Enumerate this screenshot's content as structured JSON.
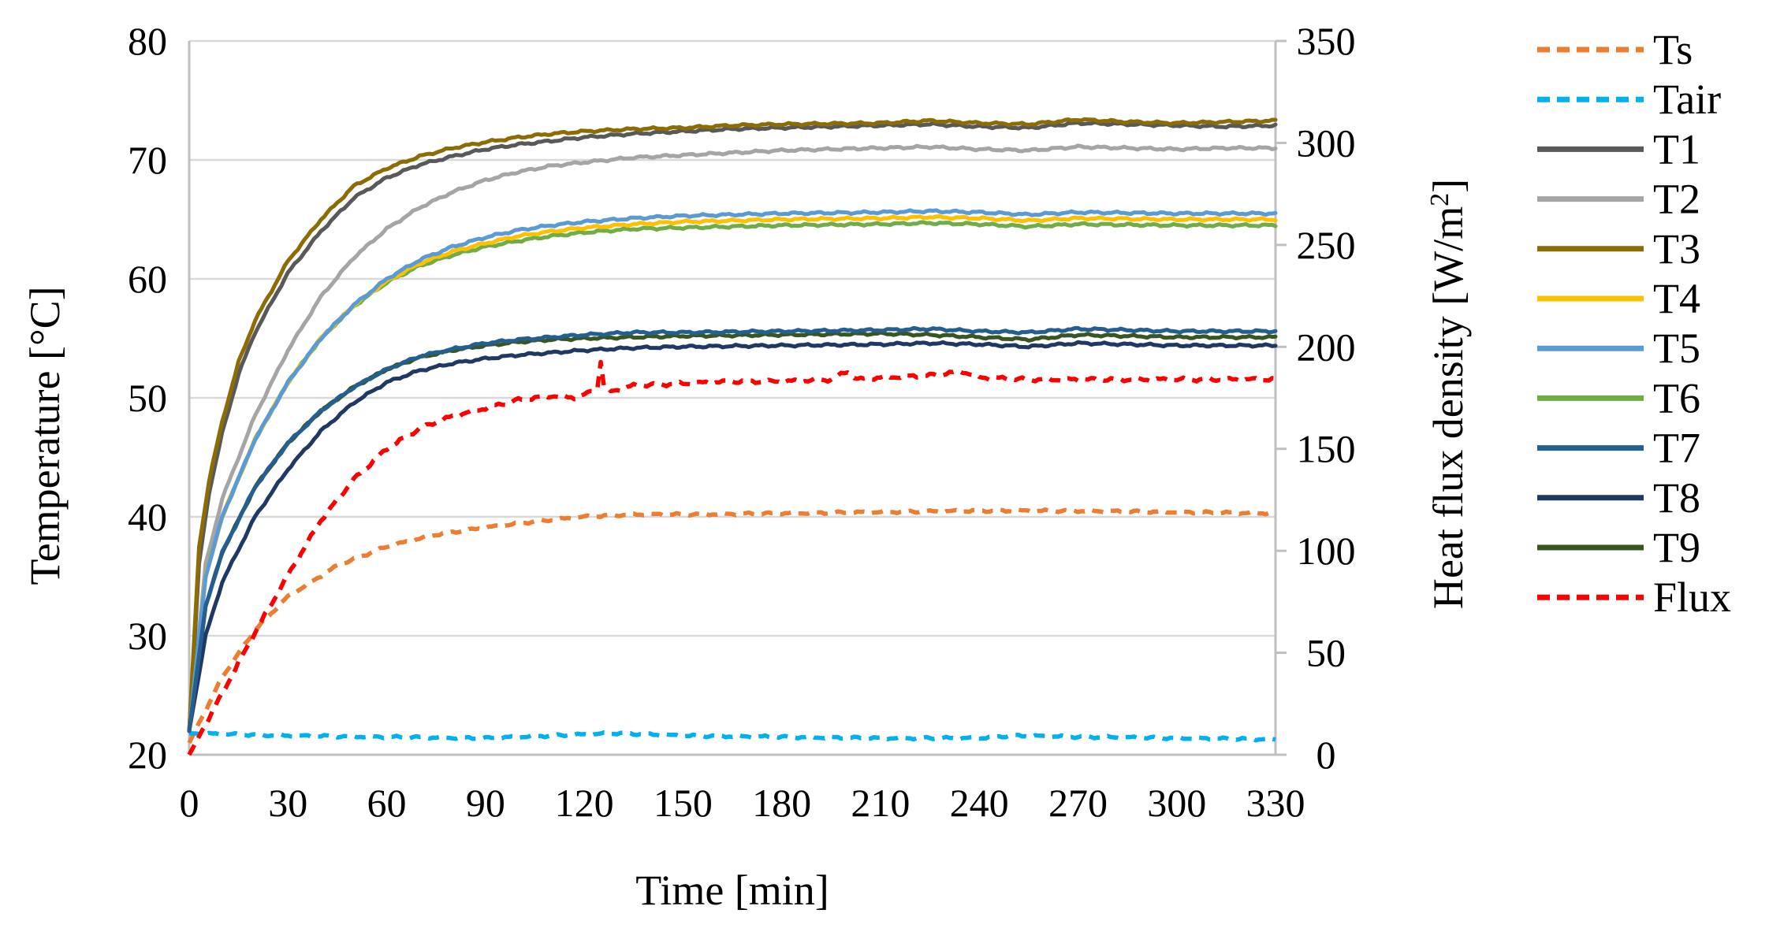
{
  "chart_data": {
    "type": "line",
    "title": "",
    "xlabel": "Time [min]",
    "ylabel": "Temperature [°C]",
    "y2label_main": "Heat flux density [W/m",
    "y2label_sup": "2",
    "y2label_end": "]",
    "xlim": [
      0,
      330
    ],
    "ylim": [
      20,
      80
    ],
    "y2lim": [
      0,
      350
    ],
    "xticks": [
      "0",
      "30",
      "60",
      "90",
      "120",
      "150",
      "180",
      "210",
      "240",
      "270",
      "300",
      "330"
    ],
    "yticks": [
      "20",
      "30",
      "40",
      "50",
      "60",
      "70",
      "80"
    ],
    "y2ticks": [
      "0",
      "50",
      "100",
      "150",
      "200",
      "250",
      "300",
      "350"
    ],
    "grid": true,
    "legend_position": "right",
    "series": [
      {
        "name": "Ts",
        "axis": "left",
        "style": "dashed",
        "color": "#ED7D31",
        "points": [
          [
            0,
            21
          ],
          [
            10,
            26.5
          ],
          [
            20,
            30.5
          ],
          [
            30,
            33.3
          ],
          [
            45,
            35.9
          ],
          [
            60,
            37.5
          ],
          [
            75,
            38.5
          ],
          [
            90,
            39.1
          ],
          [
            105,
            39.6
          ],
          [
            120,
            40.0
          ],
          [
            135,
            40.2
          ],
          [
            150,
            40.2
          ],
          [
            180,
            40.3
          ],
          [
            210,
            40.4
          ],
          [
            240,
            40.5
          ],
          [
            270,
            40.5
          ],
          [
            300,
            40.4
          ],
          [
            330,
            40.3
          ]
        ]
      },
      {
        "name": "Tair",
        "axis": "left",
        "style": "dashed",
        "color": "#00B0F0",
        "points": [
          [
            0,
            21.8
          ],
          [
            30,
            21.6
          ],
          [
            60,
            21.5
          ],
          [
            90,
            21.4
          ],
          [
            110,
            21.6
          ],
          [
            130,
            21.8
          ],
          [
            150,
            21.6
          ],
          [
            180,
            21.5
          ],
          [
            210,
            21.4
          ],
          [
            240,
            21.4
          ],
          [
            250,
            21.6
          ],
          [
            270,
            21.5
          ],
          [
            300,
            21.4
          ],
          [
            330,
            21.3
          ]
        ]
      },
      {
        "name": "T1",
        "axis": "left",
        "style": "solid",
        "color": "#595959",
        "points": [
          [
            0,
            22
          ],
          [
            3,
            36
          ],
          [
            6,
            42
          ],
          [
            10,
            47
          ],
          [
            15,
            52
          ],
          [
            20,
            55.5
          ],
          [
            30,
            60.5
          ],
          [
            40,
            64
          ],
          [
            50,
            66.8
          ],
          [
            60,
            68.5
          ],
          [
            70,
            69.6
          ],
          [
            80,
            70.3
          ],
          [
            90,
            70.9
          ],
          [
            100,
            71.3
          ],
          [
            110,
            71.6
          ],
          [
            120,
            71.9
          ],
          [
            135,
            72.2
          ],
          [
            150,
            72.4
          ],
          [
            165,
            72.6
          ],
          [
            180,
            72.7
          ],
          [
            210,
            72.9
          ],
          [
            225,
            73.0
          ],
          [
            240,
            72.8
          ],
          [
            255,
            72.7
          ],
          [
            270,
            73.1
          ],
          [
            285,
            73.0
          ],
          [
            300,
            72.9
          ],
          [
            315,
            72.8
          ],
          [
            330,
            72.9
          ]
        ]
      },
      {
        "name": "T2",
        "axis": "left",
        "style": "solid",
        "color": "#A5A5A5",
        "points": [
          [
            0,
            22
          ],
          [
            5,
            36
          ],
          [
            10,
            41.5
          ],
          [
            20,
            48.5
          ],
          [
            30,
            54
          ],
          [
            40,
            58.5
          ],
          [
            50,
            61.8
          ],
          [
            60,
            64.2
          ],
          [
            70,
            66
          ],
          [
            80,
            67.3
          ],
          [
            90,
            68.3
          ],
          [
            100,
            69
          ],
          [
            110,
            69.5
          ],
          [
            120,
            69.8
          ],
          [
            135,
            70.2
          ],
          [
            150,
            70.4
          ],
          [
            165,
            70.6
          ],
          [
            180,
            70.8
          ],
          [
            210,
            71
          ],
          [
            225,
            71.1
          ],
          [
            240,
            70.9
          ],
          [
            255,
            70.8
          ],
          [
            270,
            71.1
          ],
          [
            285,
            71
          ],
          [
            300,
            70.9
          ],
          [
            315,
            71
          ],
          [
            330,
            71
          ]
        ]
      },
      {
        "name": "T3",
        "axis": "left",
        "style": "solid",
        "color": "#8C6D05",
        "points": [
          [
            0,
            22
          ],
          [
            3,
            37.5
          ],
          [
            6,
            43
          ],
          [
            10,
            48
          ],
          [
            15,
            53
          ],
          [
            20,
            56.5
          ],
          [
            30,
            61.5
          ],
          [
            40,
            65
          ],
          [
            50,
            67.8
          ],
          [
            60,
            69.3
          ],
          [
            70,
            70.3
          ],
          [
            80,
            71
          ],
          [
            90,
            71.5
          ],
          [
            100,
            71.9
          ],
          [
            110,
            72.2
          ],
          [
            120,
            72.4
          ],
          [
            135,
            72.6
          ],
          [
            150,
            72.7
          ],
          [
            165,
            72.9
          ],
          [
            180,
            73
          ],
          [
            210,
            73.1
          ],
          [
            225,
            73.3
          ],
          [
            240,
            73.1
          ],
          [
            255,
            73
          ],
          [
            270,
            73.4
          ],
          [
            285,
            73.2
          ],
          [
            300,
            73.1
          ],
          [
            315,
            73.2
          ],
          [
            330,
            73.3
          ]
        ]
      },
      {
        "name": "T4",
        "axis": "left",
        "style": "solid",
        "color": "#FFC000",
        "points": [
          [
            0,
            22
          ],
          [
            5,
            35
          ],
          [
            10,
            40
          ],
          [
            20,
            46.5
          ],
          [
            30,
            51.3
          ],
          [
            40,
            55
          ],
          [
            50,
            57.8
          ],
          [
            60,
            59.8
          ],
          [
            70,
            61.3
          ],
          [
            80,
            62.3
          ],
          [
            90,
            63
          ],
          [
            100,
            63.6
          ],
          [
            110,
            64
          ],
          [
            120,
            64.3
          ],
          [
            135,
            64.6
          ],
          [
            150,
            64.8
          ],
          [
            180,
            65
          ],
          [
            210,
            65.1
          ],
          [
            225,
            65.2
          ],
          [
            240,
            65.1
          ],
          [
            255,
            64.9
          ],
          [
            270,
            65.1
          ],
          [
            300,
            65
          ],
          [
            330,
            65
          ]
        ]
      },
      {
        "name": "T5",
        "axis": "left",
        "style": "solid",
        "color": "#5B9BD5",
        "points": [
          [
            0,
            22
          ],
          [
            5,
            35
          ],
          [
            10,
            40
          ],
          [
            20,
            46.5
          ],
          [
            30,
            51.3
          ],
          [
            40,
            55
          ],
          [
            50,
            57.8
          ],
          [
            60,
            60
          ],
          [
            70,
            61.6
          ],
          [
            80,
            62.7
          ],
          [
            90,
            63.5
          ],
          [
            100,
            64.1
          ],
          [
            110,
            64.5
          ],
          [
            120,
            64.8
          ],
          [
            135,
            65.1
          ],
          [
            150,
            65.3
          ],
          [
            180,
            65.5
          ],
          [
            210,
            65.6
          ],
          [
            225,
            65.7
          ],
          [
            240,
            65.6
          ],
          [
            255,
            65.4
          ],
          [
            270,
            65.6
          ],
          [
            300,
            65.5
          ],
          [
            330,
            65.5
          ]
        ]
      },
      {
        "name": "T6",
        "axis": "left",
        "style": "solid",
        "color": "#70AD47",
        "points": [
          [
            0,
            22
          ],
          [
            5,
            35
          ],
          [
            10,
            40
          ],
          [
            20,
            46.5
          ],
          [
            30,
            51.3
          ],
          [
            40,
            55
          ],
          [
            50,
            57.7
          ],
          [
            60,
            59.7
          ],
          [
            70,
            61.1
          ],
          [
            80,
            62
          ],
          [
            90,
            62.7
          ],
          [
            100,
            63.2
          ],
          [
            110,
            63.6
          ],
          [
            120,
            63.9
          ],
          [
            135,
            64.2
          ],
          [
            150,
            64.3
          ],
          [
            180,
            64.5
          ],
          [
            210,
            64.6
          ],
          [
            225,
            64.7
          ],
          [
            240,
            64.6
          ],
          [
            255,
            64.4
          ],
          [
            270,
            64.6
          ],
          [
            300,
            64.5
          ],
          [
            330,
            64.5
          ]
        ]
      },
      {
        "name": "T7",
        "axis": "left",
        "style": "solid",
        "color": "#255E91",
        "points": [
          [
            0,
            22
          ],
          [
            5,
            32.5
          ],
          [
            10,
            37
          ],
          [
            20,
            42.5
          ],
          [
            30,
            46.2
          ],
          [
            40,
            48.9
          ],
          [
            50,
            50.9
          ],
          [
            60,
            52.4
          ],
          [
            70,
            53.5
          ],
          [
            80,
            54.1
          ],
          [
            90,
            54.6
          ],
          [
            100,
            54.9
          ],
          [
            110,
            55.1
          ],
          [
            120,
            55.3
          ],
          [
            135,
            55.5
          ],
          [
            150,
            55.5
          ],
          [
            180,
            55.6
          ],
          [
            210,
            55.7
          ],
          [
            225,
            55.8
          ],
          [
            240,
            55.6
          ],
          [
            255,
            55.5
          ],
          [
            270,
            55.8
          ],
          [
            285,
            55.7
          ],
          [
            300,
            55.6
          ],
          [
            330,
            55.6
          ]
        ]
      },
      {
        "name": "T8",
        "axis": "left",
        "style": "solid",
        "color": "#203864",
        "points": [
          [
            0,
            22
          ],
          [
            5,
            30
          ],
          [
            10,
            34.5
          ],
          [
            20,
            40
          ],
          [
            30,
            44
          ],
          [
            40,
            47.2
          ],
          [
            50,
            49.6
          ],
          [
            60,
            51.3
          ],
          [
            70,
            52.3
          ],
          [
            80,
            52.9
          ],
          [
            90,
            53.3
          ],
          [
            100,
            53.6
          ],
          [
            110,
            53.8
          ],
          [
            120,
            54
          ],
          [
            135,
            54.2
          ],
          [
            150,
            54.3
          ],
          [
            180,
            54.4
          ],
          [
            210,
            54.5
          ],
          [
            225,
            54.6
          ],
          [
            240,
            54.5
          ],
          [
            255,
            54.3
          ],
          [
            270,
            54.6
          ],
          [
            300,
            54.4
          ],
          [
            330,
            54.4
          ]
        ]
      },
      {
        "name": "T9",
        "axis": "left",
        "style": "solid",
        "color": "#375623",
        "points": [
          [
            0,
            22
          ],
          [
            5,
            32.5
          ],
          [
            10,
            37
          ],
          [
            20,
            42.5
          ],
          [
            30,
            46.2
          ],
          [
            40,
            48.9
          ],
          [
            50,
            50.9
          ],
          [
            60,
            52.4
          ],
          [
            70,
            53.4
          ],
          [
            80,
            54
          ],
          [
            90,
            54.4
          ],
          [
            100,
            54.7
          ],
          [
            110,
            54.9
          ],
          [
            120,
            55
          ],
          [
            135,
            55.1
          ],
          [
            150,
            55.2
          ],
          [
            180,
            55.3
          ],
          [
            210,
            55.4
          ],
          [
            225,
            55.3
          ],
          [
            240,
            55.1
          ],
          [
            255,
            54.9
          ],
          [
            270,
            55.3
          ],
          [
            300,
            55.1
          ],
          [
            330,
            55.1
          ]
        ]
      },
      {
        "name": "Flux",
        "axis": "right",
        "style": "dashed",
        "color": "#FF0000",
        "points": [
          [
            0,
            0
          ],
          [
            5,
            15
          ],
          [
            10,
            30
          ],
          [
            20,
            60
          ],
          [
            30,
            88
          ],
          [
            40,
            115
          ],
          [
            50,
            135
          ],
          [
            60,
            150
          ],
          [
            70,
            160
          ],
          [
            80,
            166
          ],
          [
            90,
            170
          ],
          [
            100,
            174
          ],
          [
            110,
            176
          ],
          [
            118,
            175
          ],
          [
            122,
            178
          ],
          [
            124,
            180
          ],
          [
            125,
            193
          ],
          [
            126,
            181
          ],
          [
            128,
            178
          ],
          [
            135,
            181
          ],
          [
            150,
            182
          ],
          [
            165,
            183
          ],
          [
            180,
            183
          ],
          [
            195,
            184
          ],
          [
            200,
            188
          ],
          [
            203,
            184
          ],
          [
            210,
            185
          ],
          [
            225,
            186
          ],
          [
            235,
            188
          ],
          [
            240,
            185
          ],
          [
            255,
            184
          ],
          [
            270,
            184
          ],
          [
            285,
            184
          ],
          [
            300,
            184
          ],
          [
            315,
            184
          ],
          [
            330,
            184
          ]
        ]
      }
    ]
  }
}
